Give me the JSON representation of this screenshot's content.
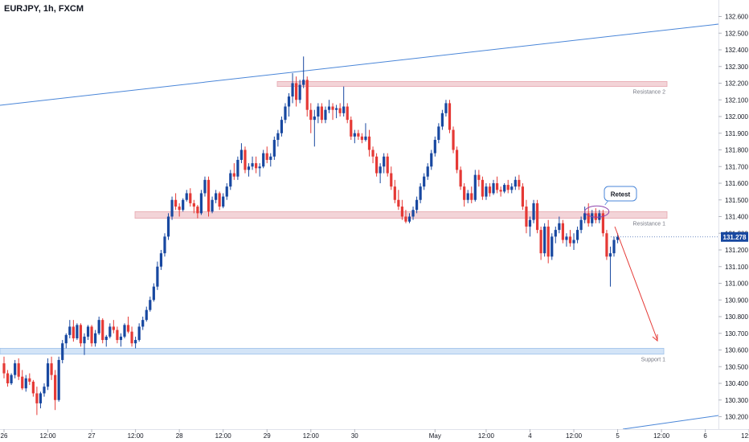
{
  "chart_data": {
    "type": "candlestick",
    "title": "EURJPY, 1h, FXCM",
    "price_axis": {
      "ticks": [
        "132.600",
        "132.500",
        "132.400",
        "132.300",
        "132.200",
        "132.100",
        "132.000",
        "131.900",
        "131.800",
        "131.700",
        "131.600",
        "131.500",
        "131.400",
        "131.300",
        "131.200",
        "131.100",
        "131.000",
        "130.900",
        "130.800",
        "130.700",
        "130.600",
        "130.500",
        "130.400",
        "130.300",
        "130.200"
      ],
      "range": [
        130.15,
        132.66
      ],
      "current_price": "131.278"
    },
    "time_axis": {
      "ticks": [
        {
          "label": "26",
          "i": 0
        },
        {
          "label": "12:00",
          "i": 12
        },
        {
          "label": "27",
          "i": 24
        },
        {
          "label": "12:00",
          "i": 36
        },
        {
          "label": "28",
          "i": 48
        },
        {
          "label": "12:00",
          "i": 60
        },
        {
          "label": "29",
          "i": 72
        },
        {
          "label": "12:00",
          "i": 84
        },
        {
          "label": "30",
          "i": 96
        },
        {
          "label": "May",
          "i": 118
        },
        {
          "label": "12:00",
          "i": 132
        },
        {
          "label": "4",
          "i": 144
        },
        {
          "label": "12:00",
          "i": 156
        },
        {
          "label": "5",
          "i": 168
        },
        {
          "label": "12:00",
          "i": 180
        },
        {
          "label": "6",
          "i": 192
        },
        {
          "label": "12:00",
          "i": 204
        }
      ]
    },
    "levels": [
      {
        "label": "Resistance 2",
        "low": 132.18,
        "high": 132.21
      },
      {
        "label": "Resistance 1",
        "low": 131.39,
        "high": 131.43
      },
      {
        "label": "Support 1",
        "low": 130.575,
        "high": 130.61
      }
    ],
    "callout": {
      "label": "Retest"
    },
    "colors": {
      "up": "#1848a0",
      "down": "#e53935",
      "trendline": "#4a86d8",
      "resistance_zone": "#f3d4d8",
      "support_zone": "#d3e4f7",
      "price_tag": "#1848a0",
      "projection_arrow": "#e53935"
    },
    "candles": [
      [
        130.52,
        130.56,
        130.43,
        130.46
      ],
      [
        130.46,
        130.48,
        130.38,
        130.4
      ],
      [
        130.4,
        130.46,
        130.39,
        130.45
      ],
      [
        130.45,
        130.54,
        130.43,
        130.52
      ],
      [
        130.52,
        130.55,
        130.42,
        130.44
      ],
      [
        130.44,
        130.48,
        130.36,
        130.37
      ],
      [
        130.37,
        130.45,
        130.35,
        130.43
      ],
      [
        130.43,
        130.46,
        130.39,
        130.41
      ],
      [
        130.41,
        130.42,
        130.32,
        130.34
      ],
      [
        130.34,
        130.38,
        130.21,
        130.28
      ],
      [
        130.28,
        130.35,
        130.25,
        130.34
      ],
      [
        130.34,
        130.4,
        130.32,
        130.38
      ],
      [
        130.38,
        130.55,
        130.36,
        130.52
      ],
      [
        130.52,
        130.56,
        130.42,
        130.45
      ],
      [
        130.45,
        130.48,
        130.24,
        130.3
      ],
      [
        130.3,
        130.56,
        130.29,
        130.54
      ],
      [
        130.54,
        130.66,
        130.52,
        130.64
      ],
      [
        130.64,
        130.7,
        130.61,
        130.69
      ],
      [
        130.69,
        130.78,
        130.67,
        130.74
      ],
      [
        130.74,
        130.78,
        130.65,
        130.67
      ],
      [
        130.67,
        130.76,
        130.66,
        130.75
      ],
      [
        130.75,
        130.76,
        130.62,
        130.64
      ],
      [
        130.64,
        130.7,
        130.57,
        130.68
      ],
      [
        130.68,
        130.75,
        130.66,
        130.74
      ],
      [
        130.74,
        130.75,
        130.62,
        130.64
      ],
      [
        130.64,
        130.72,
        130.62,
        130.7
      ],
      [
        130.7,
        130.8,
        130.69,
        130.78
      ],
      [
        130.78,
        130.79,
        130.64,
        130.66
      ],
      [
        130.66,
        130.69,
        130.62,
        130.68
      ],
      [
        130.68,
        130.76,
        130.67,
        130.74
      ],
      [
        130.74,
        130.78,
        130.7,
        130.72
      ],
      [
        130.72,
        130.74,
        130.64,
        130.66
      ],
      [
        130.66,
        130.7,
        130.62,
        130.68
      ],
      [
        130.68,
        130.76,
        130.67,
        130.75
      ],
      [
        130.75,
        130.8,
        130.7,
        130.71
      ],
      [
        130.71,
        130.74,
        130.62,
        130.64
      ],
      [
        130.64,
        130.68,
        130.61,
        130.66
      ],
      [
        130.66,
        130.76,
        130.65,
        130.74
      ],
      [
        130.74,
        130.8,
        130.72,
        130.78
      ],
      [
        130.78,
        130.86,
        130.77,
        130.84
      ],
      [
        130.84,
        130.92,
        130.83,
        130.9
      ],
      [
        130.9,
        131.0,
        130.89,
        130.98
      ],
      [
        130.98,
        131.13,
        130.96,
        131.1
      ],
      [
        131.1,
        131.2,
        131.08,
        131.18
      ],
      [
        131.18,
        131.3,
        131.16,
        131.28
      ],
      [
        131.28,
        131.42,
        131.26,
        131.4
      ],
      [
        131.4,
        131.52,
        131.38,
        131.5
      ],
      [
        131.5,
        131.54,
        131.44,
        131.46
      ],
      [
        131.46,
        131.48,
        131.4,
        131.44
      ],
      [
        131.44,
        131.51,
        131.43,
        131.5
      ],
      [
        131.5,
        131.56,
        131.49,
        131.54
      ],
      [
        131.54,
        131.57,
        131.46,
        131.48
      ],
      [
        131.48,
        131.5,
        131.42,
        131.46
      ],
      [
        131.46,
        131.47,
        131.39,
        131.42
      ],
      [
        131.42,
        131.56,
        131.41,
        131.54
      ],
      [
        131.54,
        131.64,
        131.52,
        131.62
      ],
      [
        131.62,
        131.64,
        131.4,
        131.43
      ],
      [
        131.43,
        131.52,
        131.42,
        131.5
      ],
      [
        131.5,
        131.56,
        131.48,
        131.54
      ],
      [
        131.54,
        131.55,
        131.44,
        131.46
      ],
      [
        131.46,
        131.54,
        131.45,
        131.52
      ],
      [
        131.52,
        131.6,
        131.5,
        131.58
      ],
      [
        131.58,
        131.68,
        131.56,
        131.66
      ],
      [
        131.66,
        131.72,
        131.62,
        131.64
      ],
      [
        131.64,
        131.76,
        131.62,
        131.74
      ],
      [
        131.74,
        131.84,
        131.72,
        131.8
      ],
      [
        131.8,
        131.82,
        131.66,
        131.68
      ],
      [
        131.68,
        131.72,
        131.64,
        131.7
      ],
      [
        131.7,
        131.76,
        131.68,
        131.72
      ],
      [
        131.72,
        131.76,
        131.66,
        131.69
      ],
      [
        131.69,
        131.72,
        131.64,
        131.7
      ],
      [
        131.7,
        131.8,
        131.69,
        131.78
      ],
      [
        131.78,
        131.82,
        131.72,
        131.74
      ],
      [
        131.74,
        131.78,
        131.7,
        131.76
      ],
      [
        131.76,
        131.88,
        131.74,
        131.86
      ],
      [
        131.86,
        131.92,
        131.82,
        131.9
      ],
      [
        131.9,
        132.0,
        131.88,
        131.98
      ],
      [
        131.98,
        132.08,
        131.96,
        132.06
      ],
      [
        132.06,
        132.14,
        132.0,
        132.12
      ],
      [
        132.12,
        132.26,
        132.08,
        132.2
      ],
      [
        132.2,
        132.24,
        132.06,
        132.1
      ],
      [
        132.1,
        132.22,
        132.08,
        132.19
      ],
      [
        132.19,
        132.36,
        132.17,
        132.22
      ],
      [
        132.22,
        132.24,
        132.0,
        132.04
      ],
      [
        132.04,
        132.08,
        131.9,
        131.98
      ],
      [
        131.98,
        132.04,
        131.82,
        132.0
      ],
      [
        132.0,
        132.08,
        131.96,
        132.06
      ],
      [
        132.06,
        132.08,
        131.96,
        131.98
      ],
      [
        131.98,
        132.06,
        131.96,
        132.04
      ],
      [
        132.04,
        132.1,
        132.02,
        132.06
      ],
      [
        132.06,
        132.08,
        131.98,
        132.04
      ],
      [
        132.04,
        132.07,
        131.99,
        132.05
      ],
      [
        132.05,
        132.08,
        132.0,
        132.02
      ],
      [
        132.02,
        132.18,
        132.0,
        132.06
      ],
      [
        132.06,
        132.08,
        131.96,
        131.98
      ],
      [
        131.98,
        132.0,
        131.86,
        131.88
      ],
      [
        131.88,
        131.92,
        131.84,
        131.9
      ],
      [
        131.9,
        131.92,
        131.86,
        131.88
      ],
      [
        131.88,
        131.9,
        131.84,
        131.86
      ],
      [
        131.86,
        131.96,
        131.85,
        131.88
      ],
      [
        131.88,
        131.92,
        131.76,
        131.8
      ],
      [
        131.8,
        131.82,
        131.72,
        131.76
      ],
      [
        131.76,
        131.78,
        131.64,
        131.66
      ],
      [
        131.66,
        131.72,
        131.6,
        131.7
      ],
      [
        131.7,
        131.78,
        131.66,
        131.76
      ],
      [
        131.76,
        131.78,
        131.64,
        131.66
      ],
      [
        131.66,
        131.7,
        131.56,
        131.58
      ],
      [
        131.58,
        131.62,
        131.48,
        131.5
      ],
      [
        131.5,
        131.56,
        131.44,
        131.46
      ],
      [
        131.46,
        131.5,
        131.38,
        131.4
      ],
      [
        131.4,
        131.44,
        131.36,
        131.37
      ],
      [
        131.37,
        131.42,
        131.36,
        131.4
      ],
      [
        131.4,
        131.46,
        131.38,
        131.44
      ],
      [
        131.44,
        131.52,
        131.42,
        131.5
      ],
      [
        131.5,
        131.6,
        131.48,
        131.58
      ],
      [
        131.58,
        131.66,
        131.56,
        131.64
      ],
      [
        131.64,
        131.72,
        131.62,
        131.7
      ],
      [
        131.7,
        131.8,
        131.68,
        131.78
      ],
      [
        131.78,
        131.88,
        131.76,
        131.86
      ],
      [
        131.86,
        131.96,
        131.84,
        131.94
      ],
      [
        131.94,
        132.04,
        131.92,
        132.02
      ],
      [
        132.02,
        132.1,
        132.0,
        132.08
      ],
      [
        132.08,
        132.1,
        131.9,
        131.92
      ],
      [
        131.92,
        131.94,
        131.78,
        131.8
      ],
      [
        131.8,
        131.82,
        131.66,
        131.68
      ],
      [
        131.68,
        131.7,
        131.56,
        131.58
      ],
      [
        131.58,
        131.6,
        131.46,
        131.5
      ],
      [
        131.5,
        131.56,
        131.48,
        131.54
      ],
      [
        131.54,
        131.58,
        131.48,
        131.5
      ],
      [
        131.5,
        131.68,
        131.49,
        131.65
      ],
      [
        131.65,
        131.68,
        131.58,
        131.62
      ],
      [
        131.62,
        131.64,
        131.5,
        131.52
      ],
      [
        131.52,
        131.6,
        131.5,
        131.58
      ],
      [
        131.58,
        131.6,
        131.52,
        131.54
      ],
      [
        131.54,
        131.62,
        131.53,
        131.6
      ],
      [
        131.6,
        131.64,
        131.54,
        131.56
      ],
      [
        131.56,
        131.58,
        131.52,
        131.55
      ],
      [
        131.55,
        131.6,
        131.54,
        131.59
      ],
      [
        131.59,
        131.62,
        131.54,
        131.56
      ],
      [
        131.56,
        131.6,
        131.54,
        131.58
      ],
      [
        131.58,
        131.64,
        131.56,
        131.62
      ],
      [
        131.62,
        131.65,
        131.56,
        131.58
      ],
      [
        131.58,
        131.6,
        131.44,
        131.46
      ],
      [
        131.46,
        131.5,
        131.3,
        131.34
      ],
      [
        131.34,
        131.4,
        131.28,
        131.38
      ],
      [
        131.38,
        131.5,
        131.36,
        131.48
      ],
      [
        131.48,
        131.5,
        131.3,
        131.32
      ],
      [
        131.32,
        131.34,
        131.14,
        131.18
      ],
      [
        131.18,
        131.36,
        131.16,
        131.34
      ],
      [
        131.34,
        131.38,
        131.12,
        131.16
      ],
      [
        131.16,
        131.3,
        131.14,
        131.28
      ],
      [
        131.28,
        131.34,
        131.24,
        131.32
      ],
      [
        131.32,
        131.4,
        131.3,
        131.36
      ],
      [
        131.36,
        131.38,
        131.24,
        131.26
      ],
      [
        131.26,
        131.3,
        131.22,
        131.28
      ],
      [
        131.28,
        131.32,
        131.22,
        131.24
      ],
      [
        131.24,
        131.3,
        131.2,
        131.26
      ],
      [
        131.26,
        131.34,
        131.24,
        131.32
      ],
      [
        131.32,
        131.4,
        131.3,
        131.38
      ],
      [
        131.38,
        131.46,
        131.36,
        131.42
      ],
      [
        131.42,
        131.48,
        131.34,
        131.36
      ],
      [
        131.36,
        131.44,
        131.34,
        131.42
      ],
      [
        131.42,
        131.45,
        131.36,
        131.38
      ],
      [
        131.38,
        131.44,
        131.36,
        131.42
      ],
      [
        131.42,
        131.44,
        131.28,
        131.3
      ],
      [
        131.3,
        131.32,
        131.14,
        131.16
      ],
      [
        131.16,
        131.22,
        130.98,
        131.18
      ],
      [
        131.18,
        131.28,
        131.16,
        131.26
      ],
      [
        131.26,
        131.3,
        131.24,
        131.278
      ]
    ]
  }
}
